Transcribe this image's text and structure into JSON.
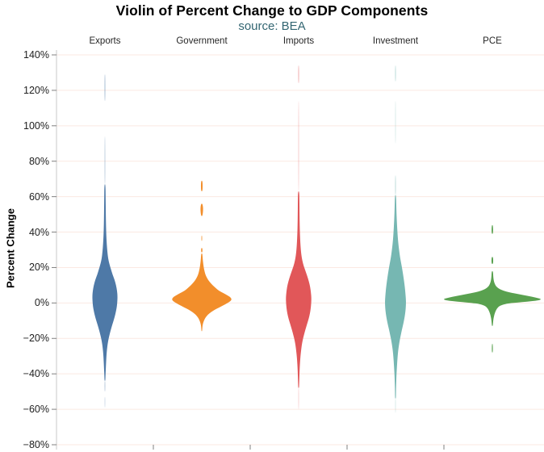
{
  "header": {
    "title": "Violin of Percent Change to GDP Components",
    "subtitle": "source: BEA"
  },
  "chart_data": {
    "type": "violin",
    "title": "Violin of Percent Change to GDP Components",
    "subtitle": "source: BEA",
    "source": "BEA",
    "ylabel": "Percent Change",
    "ylim": [
      -80,
      140
    ],
    "ytick_step": 20,
    "grid": true,
    "tick_values": [
      140,
      120,
      100,
      80,
      60,
      40,
      20,
      0,
      -20,
      -40,
      -60,
      -80
    ],
    "tick_labels": [
      "140%",
      "120%",
      "100%",
      "80%",
      "60%",
      "40%",
      "20%",
      "0%",
      "−20%",
      "−40%",
      "−60%",
      "−80%"
    ],
    "categories": [
      "Exports",
      "Government",
      "Imports",
      "Investment",
      "PCE"
    ],
    "series": [
      {
        "name": "Exports",
        "color": "#4e79a7",
        "body_range_pct": [
          -44,
          67
        ],
        "peak_pct": 4,
        "segments": [
          {
            "opacity": 0.5,
            "points": [
              [
                129,
                0.5
              ],
              [
                114,
                0.5
              ]
            ]
          },
          {
            "opacity": 0.45,
            "points": [
              [
                94,
                0.35
              ],
              [
                67,
                0.45
              ]
            ]
          },
          {
            "opacity": 1,
            "points": [
              [
                67,
                0.7
              ],
              [
                58,
                0.9
              ],
              [
                50,
                1.1
              ],
              [
                44,
                1.3
              ],
              [
                38,
                1.7
              ],
              [
                33,
                2.3
              ],
              [
                29,
                3
              ],
              [
                25,
                4
              ],
              [
                22,
                5.5
              ],
              [
                19,
                7.5
              ],
              [
                16,
                9.5
              ],
              [
                13,
                12
              ],
              [
                10,
                13.8
              ],
              [
                7,
                15
              ],
              [
                4,
                15.6
              ],
              [
                1,
                15.4
              ],
              [
                -2,
                14.8
              ],
              [
                -5,
                13.6
              ],
              [
                -8,
                12
              ],
              [
                -11,
                10
              ],
              [
                -14,
                8
              ],
              [
                -17,
                6.2
              ],
              [
                -20,
                4.6
              ],
              [
                -23,
                3.4
              ],
              [
                -26,
                2.6
              ],
              [
                -29,
                2
              ],
              [
                -32,
                1.6
              ],
              [
                -35,
                1.3
              ],
              [
                -38,
                1
              ],
              [
                -41,
                0.7
              ],
              [
                -44,
                0.5
              ]
            ]
          },
          {
            "opacity": 0.55,
            "points": [
              [
                -44,
                0.4
              ],
              [
                -50,
                0.35
              ]
            ]
          },
          {
            "opacity": 0.4,
            "points": [
              [
                -53,
                0.35
              ],
              [
                -59,
                0.3
              ]
            ]
          }
        ]
      },
      {
        "name": "Government",
        "color": "#f28e2b",
        "body_range_pct": [
          -16,
          28
        ],
        "peak_pct": 2,
        "segments": [
          {
            "opacity": 1,
            "points": [
              [
                69,
                0.8
              ],
              [
                66,
                1.1
              ],
              [
                63,
                0.8
              ]
            ]
          },
          {
            "opacity": 1,
            "points": [
              [
                56,
                0.9
              ],
              [
                53,
                1.8
              ],
              [
                49,
                0.9
              ]
            ]
          },
          {
            "opacity": 0.7,
            "points": [
              [
                38,
                0.6
              ],
              [
                35,
                0.6
              ]
            ]
          },
          {
            "opacity": 1,
            "points": [
              [
                31,
                0.8
              ],
              [
                28.5,
                0.8
              ]
            ]
          },
          {
            "opacity": 1,
            "points": [
              [
                28,
                0.7
              ],
              [
                25,
                1.1
              ],
              [
                22,
                1.8
              ],
              [
                19,
                2.8
              ],
              [
                16,
                4.5
              ],
              [
                14,
                6.5
              ],
              [
                12,
                9.5
              ],
              [
                10,
                13.5
              ],
              [
                8.5,
                17
              ],
              [
                7,
                21
              ],
              [
                6,
                25
              ],
              [
                5,
                29
              ],
              [
                4,
                33
              ],
              [
                3,
                36
              ],
              [
                2,
                37
              ],
              [
                1,
                35.5
              ],
              [
                0,
                32
              ],
              [
                -1,
                28
              ],
              [
                -2,
                24
              ],
              [
                -3,
                19.5
              ],
              [
                -4,
                15.5
              ],
              [
                -5,
                12
              ],
              [
                -6,
                9
              ],
              [
                -7,
                6.8
              ],
              [
                -8,
                5
              ],
              [
                -9,
                3.7
              ],
              [
                -10,
                2.7
              ],
              [
                -11,
                1.9
              ],
              [
                -12,
                1.3
              ],
              [
                -13,
                0.9
              ],
              [
                -14.5,
                0.6
              ],
              [
                -16,
                0.4
              ]
            ]
          }
        ]
      },
      {
        "name": "Imports",
        "color": "#e15759",
        "body_range_pct": [
          -48,
          63
        ],
        "peak_pct": 3,
        "segments": [
          {
            "opacity": 0.5,
            "points": [
              [
                134,
                0.5
              ],
              [
                124,
                0.5
              ]
            ]
          },
          {
            "opacity": 0.4,
            "points": [
              [
                114,
                0.35
              ],
              [
                63,
                0.4
              ]
            ]
          },
          {
            "opacity": 1,
            "points": [
              [
                63,
                0.8
              ],
              [
                56,
                1
              ],
              [
                50,
                1.1
              ],
              [
                44,
                1.3
              ],
              [
                39,
                1.6
              ],
              [
                34,
                2.1
              ],
              [
                30,
                2.7
              ],
              [
                27,
                3.4
              ],
              [
                24,
                4.5
              ],
              [
                21,
                6.2
              ],
              [
                18,
                8.5
              ],
              [
                15,
                10.8
              ],
              [
                12,
                12.8
              ],
              [
                9,
                14.3
              ],
              [
                6,
                15.2
              ],
              [
                3,
                15.8
              ],
              [
                0,
                15.6
              ],
              [
                -3,
                15
              ],
              [
                -6,
                14
              ],
              [
                -9,
                12.4
              ],
              [
                -12,
                10.4
              ],
              [
                -15,
                8.4
              ],
              [
                -18,
                6.6
              ],
              [
                -21,
                5
              ],
              [
                -24,
                3.8
              ],
              [
                -27,
                3
              ],
              [
                -30,
                2.3
              ],
              [
                -33,
                1.8
              ],
              [
                -36,
                1.4
              ],
              [
                -39,
                1.1
              ],
              [
                -42,
                0.9
              ],
              [
                -45,
                0.7
              ],
              [
                -48,
                0.5
              ]
            ]
          },
          {
            "opacity": 0.4,
            "points": [
              [
                -48,
                0.35
              ],
              [
                -60,
                0.3
              ]
            ]
          }
        ]
      },
      {
        "name": "Investment",
        "color": "#76b7b2",
        "body_range_pct": [
          -54,
          61
        ],
        "peak_pct": 0,
        "segments": [
          {
            "opacity": 0.5,
            "points": [
              [
                134,
                0.5
              ],
              [
                125,
                0.5
              ]
            ]
          },
          {
            "opacity": 0.4,
            "points": [
              [
                114,
                0.35
              ],
              [
                90,
                0.35
              ]
            ]
          },
          {
            "opacity": 0.55,
            "points": [
              [
                72,
                0.4
              ],
              [
                61,
                0.5
              ]
            ]
          },
          {
            "opacity": 1,
            "points": [
              [
                61,
                0.7
              ],
              [
                55,
                1
              ],
              [
                50,
                1.3
              ],
              [
                45,
                1.8
              ],
              [
                40,
                2.4
              ],
              [
                36,
                3
              ],
              [
                32,
                3.9
              ],
              [
                29,
                4.7
              ],
              [
                26,
                5.6
              ],
              [
                23,
                6.8
              ],
              [
                20,
                8
              ],
              [
                17,
                9.1
              ],
              [
                14,
                10.1
              ],
              [
                11,
                11
              ],
              [
                8,
                11.8
              ],
              [
                5,
                12.4
              ],
              [
                2,
                12.9
              ],
              [
                0,
                13
              ],
              [
                -3,
                12.7
              ],
              [
                -6,
                12
              ],
              [
                -9,
                10.9
              ],
              [
                -12,
                9.6
              ],
              [
                -15,
                8
              ],
              [
                -18,
                6.6
              ],
              [
                -21,
                5.3
              ],
              [
                -24,
                4.2
              ],
              [
                -27,
                3.3
              ],
              [
                -30,
                2.7
              ],
              [
                -33,
                2.2
              ],
              [
                -36,
                1.8
              ],
              [
                -39,
                1.4
              ],
              [
                -42,
                1.1
              ],
              [
                -45,
                0.9
              ],
              [
                -48,
                0.7
              ],
              [
                -51,
                0.6
              ],
              [
                -54,
                0.5
              ]
            ]
          },
          {
            "opacity": 0.4,
            "points": [
              [
                -54,
                0.4
              ],
              [
                -62,
                0.3
              ]
            ]
          }
        ]
      },
      {
        "name": "PCE",
        "color": "#59a14f",
        "body_range_pct": [
          -13,
          18
        ],
        "peak_pct": 2.2,
        "segments": [
          {
            "opacity": 1,
            "points": [
              [
                44,
                0.8
              ],
              [
                39,
                1
              ]
            ]
          },
          {
            "opacity": 1,
            "points": [
              [
                26,
                1
              ],
              [
                22,
                1.1
              ]
            ]
          },
          {
            "opacity": 1,
            "points": [
              [
                18,
                0.8
              ],
              [
                15,
                1.1
              ],
              [
                13,
                1.6
              ],
              [
                11.5,
                2.4
              ],
              [
                10,
                3.8
              ],
              [
                9,
                5.5
              ],
              [
                8,
                8.5
              ],
              [
                7,
                13
              ],
              [
                6,
                21
              ],
              [
                5,
                32
              ],
              [
                4,
                44
              ],
              [
                3,
                54
              ],
              [
                2.2,
                61
              ],
              [
                1.5,
                58
              ],
              [
                1,
                49
              ],
              [
                0.5,
                37
              ],
              [
                0,
                25
              ],
              [
                -0.5,
                17
              ],
              [
                -1,
                13
              ],
              [
                -1.5,
                10
              ],
              [
                -2,
                8
              ],
              [
                -3,
                6
              ],
              [
                -4,
                4.7
              ],
              [
                -5,
                3.7
              ],
              [
                -6,
                2.9
              ],
              [
                -7,
                2.3
              ],
              [
                -8,
                1.8
              ],
              [
                -9,
                1.4
              ],
              [
                -10,
                1.1
              ],
              [
                -11,
                0.9
              ],
              [
                -12,
                0.7
              ],
              [
                -13,
                0.5
              ]
            ]
          },
          {
            "opacity": 0.8,
            "points": [
              [
                -23,
                0.7
              ],
              [
                -28,
                0.8
              ]
            ]
          }
        ]
      }
    ],
    "colors": {
      "gridline": "#fbe9e2",
      "axis_line": "#c9c9c9",
      "tick_mark": "#808080",
      "subtitle_text": "#336672"
    }
  }
}
